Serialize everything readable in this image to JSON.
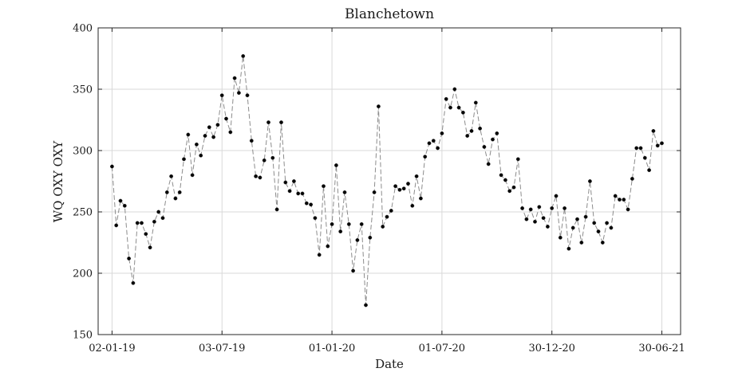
{
  "chart_data": {
    "type": "line",
    "title": "Blanchetown",
    "xlabel": "Date",
    "ylabel": "WQ OXY OXY",
    "ylim": [
      150,
      400
    ],
    "yticks": [
      150,
      200,
      250,
      300,
      350,
      400
    ],
    "xlim": [
      "2018-12-10",
      "2021-07-31"
    ],
    "xticks": [
      {
        "date": "2019-01-02",
        "label": "02-01-19"
      },
      {
        "date": "2019-07-03",
        "label": "03-07-19"
      },
      {
        "date": "2020-01-01",
        "label": "01-01-20"
      },
      {
        "date": "2020-07-01",
        "label": "01-07-20"
      },
      {
        "date": "2020-12-30",
        "label": "30-12-20"
      },
      {
        "date": "2021-06-30",
        "label": "30-06-21"
      }
    ],
    "grid": true,
    "series": [
      {
        "marker_color": "#000000",
        "line_color": "#8c8c8c",
        "line_style": "dashed",
        "x": [
          "2019-01-02",
          "2019-01-09",
          "2019-01-16",
          "2019-01-23",
          "2019-01-30",
          "2019-02-06",
          "2019-02-13",
          "2019-02-20",
          "2019-02-27",
          "2019-03-06",
          "2019-03-13",
          "2019-03-20",
          "2019-03-27",
          "2019-04-03",
          "2019-04-10",
          "2019-04-17",
          "2019-04-24",
          "2019-05-01",
          "2019-05-08",
          "2019-05-15",
          "2019-05-22",
          "2019-05-29",
          "2019-06-05",
          "2019-06-12",
          "2019-06-19",
          "2019-06-26",
          "2019-07-03",
          "2019-07-10",
          "2019-07-17",
          "2019-07-24",
          "2019-07-31",
          "2019-08-07",
          "2019-08-14",
          "2019-08-21",
          "2019-08-28",
          "2019-09-04",
          "2019-09-11",
          "2019-09-18",
          "2019-09-25",
          "2019-10-02",
          "2019-10-09",
          "2019-10-16",
          "2019-10-23",
          "2019-10-30",
          "2019-11-06",
          "2019-11-13",
          "2019-11-20",
          "2019-11-27",
          "2019-12-04",
          "2019-12-11",
          "2019-12-18",
          "2019-12-25",
          "2020-01-01",
          "2020-01-08",
          "2020-01-15",
          "2020-01-22",
          "2020-01-29",
          "2020-02-05",
          "2020-02-12",
          "2020-02-19",
          "2020-02-26",
          "2020-03-04",
          "2020-03-11",
          "2020-03-18",
          "2020-03-25",
          "2020-04-01",
          "2020-04-08",
          "2020-04-15",
          "2020-04-22",
          "2020-04-29",
          "2020-05-06",
          "2020-05-13",
          "2020-05-20",
          "2020-05-27",
          "2020-06-03",
          "2020-06-10",
          "2020-06-17",
          "2020-06-24",
          "2020-07-01",
          "2020-07-08",
          "2020-07-15",
          "2020-07-22",
          "2020-07-29",
          "2020-08-05",
          "2020-08-12",
          "2020-08-19",
          "2020-08-26",
          "2020-09-02",
          "2020-09-09",
          "2020-09-16",
          "2020-09-23",
          "2020-09-30",
          "2020-10-07",
          "2020-10-14",
          "2020-10-21",
          "2020-10-28",
          "2020-11-04",
          "2020-11-11",
          "2020-11-18",
          "2020-11-25",
          "2020-12-02",
          "2020-12-09",
          "2020-12-16",
          "2020-12-23",
          "2020-12-30",
          "2021-01-06",
          "2021-01-13",
          "2021-01-20",
          "2021-01-27",
          "2021-02-03",
          "2021-02-10",
          "2021-02-17",
          "2021-02-24",
          "2021-03-03",
          "2021-03-10",
          "2021-03-17",
          "2021-03-24",
          "2021-03-31",
          "2021-04-07",
          "2021-04-14",
          "2021-04-21",
          "2021-04-28",
          "2021-05-05",
          "2021-05-12",
          "2021-05-19",
          "2021-05-26",
          "2021-06-02",
          "2021-06-09",
          "2021-06-16",
          "2021-06-23",
          "2021-06-30"
        ],
        "y": [
          287,
          239,
          259,
          255,
          212,
          192,
          241,
          241,
          232,
          221,
          242,
          250,
          245,
          266,
          279,
          261,
          266,
          293,
          313,
          280,
          305,
          296,
          312,
          319,
          311,
          321,
          345,
          326,
          315,
          359,
          347,
          377,
          345,
          308,
          279,
          278,
          292,
          323,
          294,
          252,
          323,
          274,
          267,
          275,
          265,
          265,
          257,
          256,
          245,
          215,
          271,
          222,
          240,
          288,
          234,
          266,
          240,
          202,
          227,
          240,
          174,
          229,
          266,
          336,
          238,
          246,
          251,
          271,
          268,
          269,
          273,
          255,
          279,
          261,
          295,
          306,
          308,
          302,
          314,
          342,
          335,
          350,
          335,
          331,
          312,
          316,
          339,
          318,
          303,
          289,
          309,
          314,
          280,
          276,
          267,
          270,
          293,
          253,
          244,
          252,
          242,
          254,
          245,
          238,
          253,
          263,
          229,
          253,
          220,
          237,
          244,
          225,
          246,
          275,
          241,
          234,
          225,
          241,
          237,
          263,
          260,
          260,
          252,
          277,
          302,
          302,
          294,
          284,
          316,
          304,
          306
        ]
      }
    ]
  }
}
